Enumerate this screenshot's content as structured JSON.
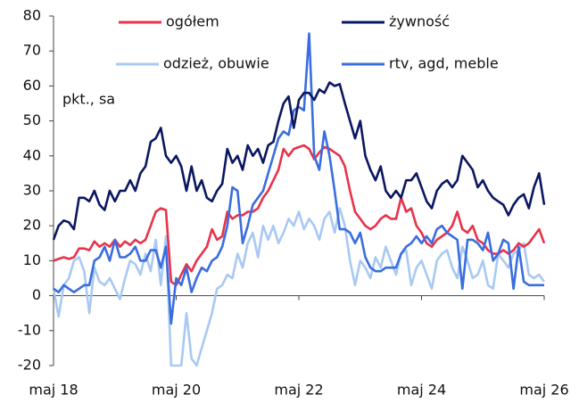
{
  "chart_data": {
    "type": "line",
    "annotation": "pkt., sa",
    "categories": [
      "maj 18",
      null,
      null,
      null,
      null,
      null,
      null,
      null,
      null,
      null,
      null,
      null,
      null,
      null,
      null,
      null,
      null,
      null,
      null,
      null,
      null,
      null,
      null,
      null,
      "maj 20",
      null,
      null,
      null,
      null,
      null,
      null,
      null,
      null,
      null,
      null,
      null,
      null,
      null,
      null,
      null,
      null,
      null,
      null,
      null,
      null,
      null,
      null,
      null,
      "maj 22",
      null,
      null,
      null,
      null,
      null,
      null,
      null,
      null,
      null,
      null,
      null,
      null,
      null,
      null,
      null,
      null,
      null,
      null,
      null,
      null,
      null,
      null,
      null,
      "maj 24",
      null,
      null,
      null,
      null,
      null,
      null,
      null,
      null,
      null,
      null,
      null,
      null,
      null,
      null,
      null,
      null,
      null,
      null,
      null,
      null,
      null,
      null,
      null,
      "maj 26"
    ],
    "series": [
      {
        "name": "ogółem",
        "color": "#e8334a",
        "values": [
          10,
          10.5,
          11,
          10.5,
          11,
          13.5,
          13.5,
          13,
          15.5,
          14,
          15,
          14,
          16,
          14,
          15.5,
          14.5,
          16,
          15,
          16,
          20,
          24,
          25,
          24.5,
          4,
          3,
          6,
          9,
          7,
          10,
          12,
          14,
          19,
          16,
          17,
          24,
          22,
          23,
          23,
          24,
          24,
          25,
          28,
          30,
          33,
          36,
          42,
          40,
          42,
          42.5,
          43,
          42,
          39,
          41,
          42.5,
          42,
          41,
          40,
          37,
          30,
          24,
          22,
          20,
          19,
          20,
          22,
          23,
          22,
          22,
          28,
          24,
          25,
          20,
          18,
          15,
          14,
          16,
          17,
          18,
          20,
          24,
          19,
          18,
          20,
          16,
          15,
          13,
          12,
          12,
          13,
          12,
          13,
          15,
          14,
          15,
          17,
          19,
          15
        ]
      },
      {
        "name": "żywność",
        "color": "#0b1760",
        "values": [
          16,
          20,
          21.5,
          21,
          19,
          28,
          28,
          27,
          30,
          26,
          24.5,
          30,
          27,
          30,
          30,
          33,
          30,
          35,
          37,
          44,
          45,
          48,
          40,
          38,
          40,
          37,
          30,
          37,
          30,
          33,
          28,
          27,
          30,
          32,
          42,
          38,
          40,
          36,
          43,
          40,
          42,
          38,
          43,
          44,
          50,
          55,
          57,
          48,
          56,
          58,
          58,
          56,
          59,
          58,
          61,
          60,
          60.5,
          55,
          50,
          45,
          50,
          40,
          36,
          33,
          37,
          30,
          28,
          30,
          28,
          33,
          33,
          35,
          31,
          27,
          25,
          30,
          32,
          33,
          31,
          33,
          40,
          38,
          36,
          31,
          33,
          30,
          28,
          27,
          26,
          23,
          26,
          28,
          29,
          25,
          31,
          35,
          26
        ]
      },
      {
        "name": "odzież, obuwie",
        "color": "#a9c9f2",
        "values": [
          2,
          -6,
          3,
          5,
          10,
          11,
          7,
          -5,
          8,
          4,
          3,
          5,
          2,
          -1,
          5,
          10,
          9,
          6,
          12,
          7,
          16,
          3,
          17,
          -20,
          -20,
          -20,
          -5,
          -18,
          -20,
          -15,
          -10,
          -5,
          2,
          3,
          6,
          5,
          12,
          8,
          15,
          18,
          11,
          20,
          16,
          20,
          15,
          18,
          22,
          20,
          24,
          19,
          22,
          20,
          16,
          22,
          24,
          18,
          25,
          20,
          10,
          3,
          10,
          8,
          5,
          11,
          8,
          14,
          10,
          6,
          12,
          13,
          3,
          8,
          10,
          6,
          2,
          10,
          12,
          13,
          8,
          5,
          14,
          10,
          5,
          6,
          10,
          3,
          2,
          12,
          10,
          8,
          12,
          13,
          15,
          6,
          5,
          6,
          4
        ]
      },
      {
        "name": "rtv, agd, meble",
        "color": "#3a6de0",
        "values": [
          2,
          1,
          3,
          2,
          1,
          2,
          3,
          3,
          10,
          11,
          14,
          10,
          16,
          11,
          11,
          12,
          14,
          10,
          10,
          13,
          13,
          8,
          14,
          -8,
          5,
          3,
          8,
          1,
          5,
          8,
          7,
          10,
          11,
          14,
          20,
          31,
          30,
          15,
          20,
          26,
          28,
          30,
          35,
          40,
          45,
          47,
          46,
          53,
          54,
          53,
          75,
          40,
          36,
          47,
          40,
          30,
          19,
          19,
          18,
          15,
          18,
          11,
          8,
          7,
          7,
          8,
          8,
          8,
          12,
          14,
          15,
          17,
          15,
          17,
          15,
          19,
          20,
          18,
          17,
          16,
          2,
          16,
          16,
          15,
          13,
          18,
          10,
          12,
          16,
          15,
          2,
          14,
          4,
          3,
          3,
          3,
          3
        ]
      }
    ],
    "ylim": [
      -20,
      80
    ],
    "yticks": [
      -20,
      -10,
      0,
      10,
      20,
      30,
      40,
      50,
      60,
      70,
      80
    ],
    "grid": false
  }
}
